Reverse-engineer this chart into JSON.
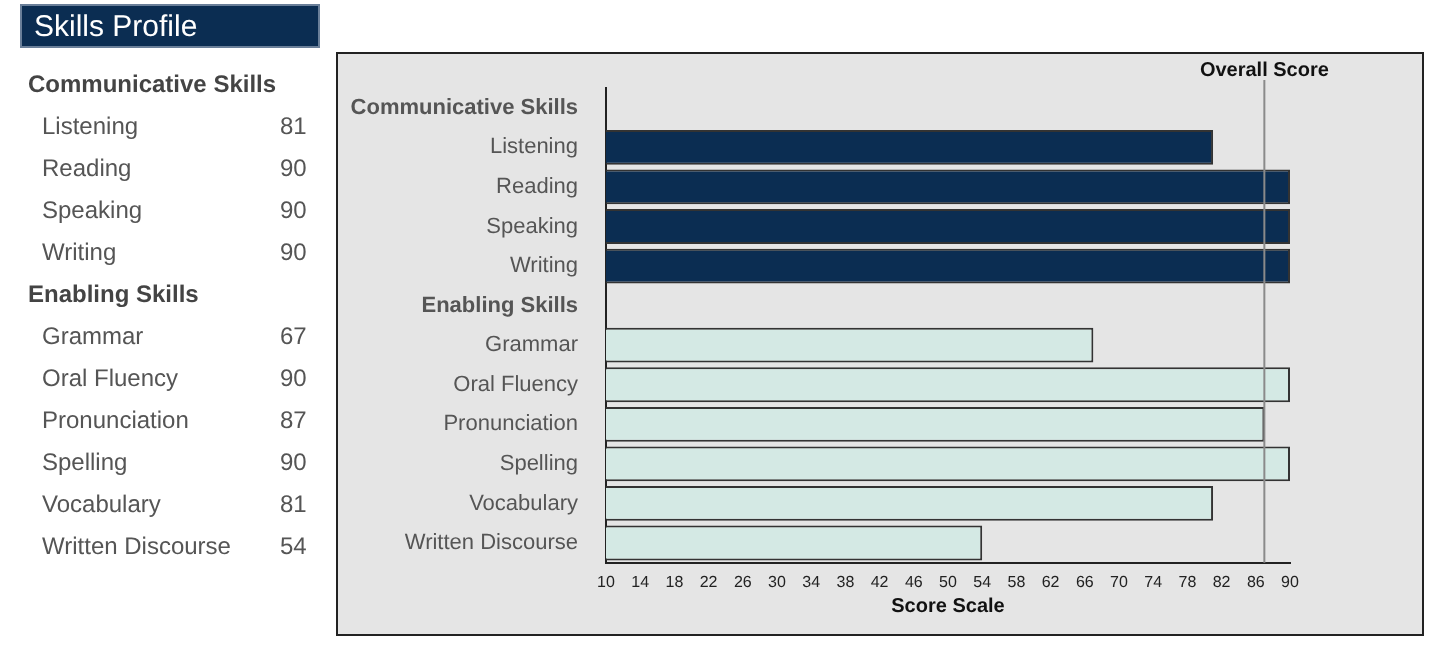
{
  "chart_data": {
    "type": "bar",
    "title": "Skills Profile",
    "orientation": "horizontal",
    "categories": [
      "Communicative Skills",
      "Listening",
      "Reading",
      "Speaking",
      "Writing",
      "Enabling Skills",
      "Grammar",
      "Oral Fluency",
      "Pronunciation",
      "Spelling",
      "Vocabulary",
      "Written Discourse"
    ],
    "values": [
      null,
      81,
      90,
      90,
      90,
      null,
      67,
      90,
      87,
      90,
      81,
      54
    ],
    "colors": [
      null,
      "#0b2d52",
      "#0b2d52",
      "#0b2d52",
      "#0b2d52",
      null,
      "#d4e9e4",
      "#d4e9e4",
      "#d4e9e4",
      "#d4e9e4",
      "#d4e9e4",
      "#d4e9e4"
    ],
    "xlim": [
      10,
      90
    ],
    "xticks": [
      10,
      14,
      18,
      22,
      26,
      30,
      34,
      38,
      42,
      46,
      50,
      54,
      58,
      62,
      66,
      70,
      74,
      78,
      82,
      86,
      90
    ],
    "xlabel": "Score Scale",
    "ref_lines": [
      {
        "axis": "x",
        "value": 87,
        "label": "Overall Score",
        "color": "#8a8a8a"
      }
    ],
    "data_labels": true,
    "grid": false,
    "legend": false
  }
}
